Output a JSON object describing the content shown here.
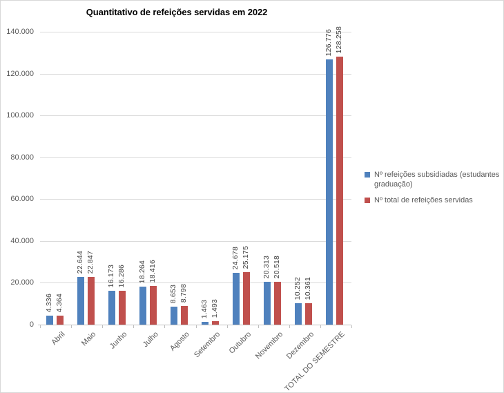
{
  "chart_data": {
    "type": "bar",
    "title": "Quantitativo de refeições servidas em 2022",
    "categories": [
      "Abril",
      "Maio",
      "Junho",
      "Julho",
      "Agosto",
      "Setembro",
      "Outubro",
      "Novembro",
      "Dezembro",
      "TOTAL DO SEMESTRE"
    ],
    "series": [
      {
        "name": "Nº refeições subsidiadas (estudantes graduação)",
        "color": "#4F81BD",
        "values": [
          4336,
          22644,
          16173,
          18264,
          8653,
          1463,
          24678,
          20313,
          10252,
          126776
        ],
        "labels": [
          "4.336",
          "22.644",
          "16.173",
          "18.264",
          "8.653",
          "1.463",
          "24.678",
          "20.313",
          "10.252",
          "126.776"
        ]
      },
      {
        "name": "Nº total de refeições servidas",
        "color": "#C0504D",
        "values": [
          4364,
          22847,
          16286,
          18416,
          8798,
          1493,
          25175,
          20518,
          10361,
          128258
        ],
        "labels": [
          "4.364",
          "22.847",
          "16.286",
          "18.416",
          "8.798",
          "1.493",
          "25.175",
          "20.518",
          "10.361",
          "128.258"
        ]
      }
    ],
    "ylim": [
      0,
      140000
    ],
    "ytick_step": 20000,
    "ytick_labels": [
      "0",
      "20.000",
      "40.000",
      "60.000",
      "80.000",
      "100.000",
      "120.000",
      "140.000"
    ],
    "grid": true,
    "legend_position": "right",
    "bar_value_labels_rotated": true,
    "x_labels_rotated_degrees": -45
  },
  "colors": {
    "series_blue": "#4F81BD",
    "series_red": "#C0504D",
    "gridline": "#d9d9d9",
    "axis_text": "#595959",
    "value_label_text": "#404040",
    "title_text": "#000000"
  }
}
